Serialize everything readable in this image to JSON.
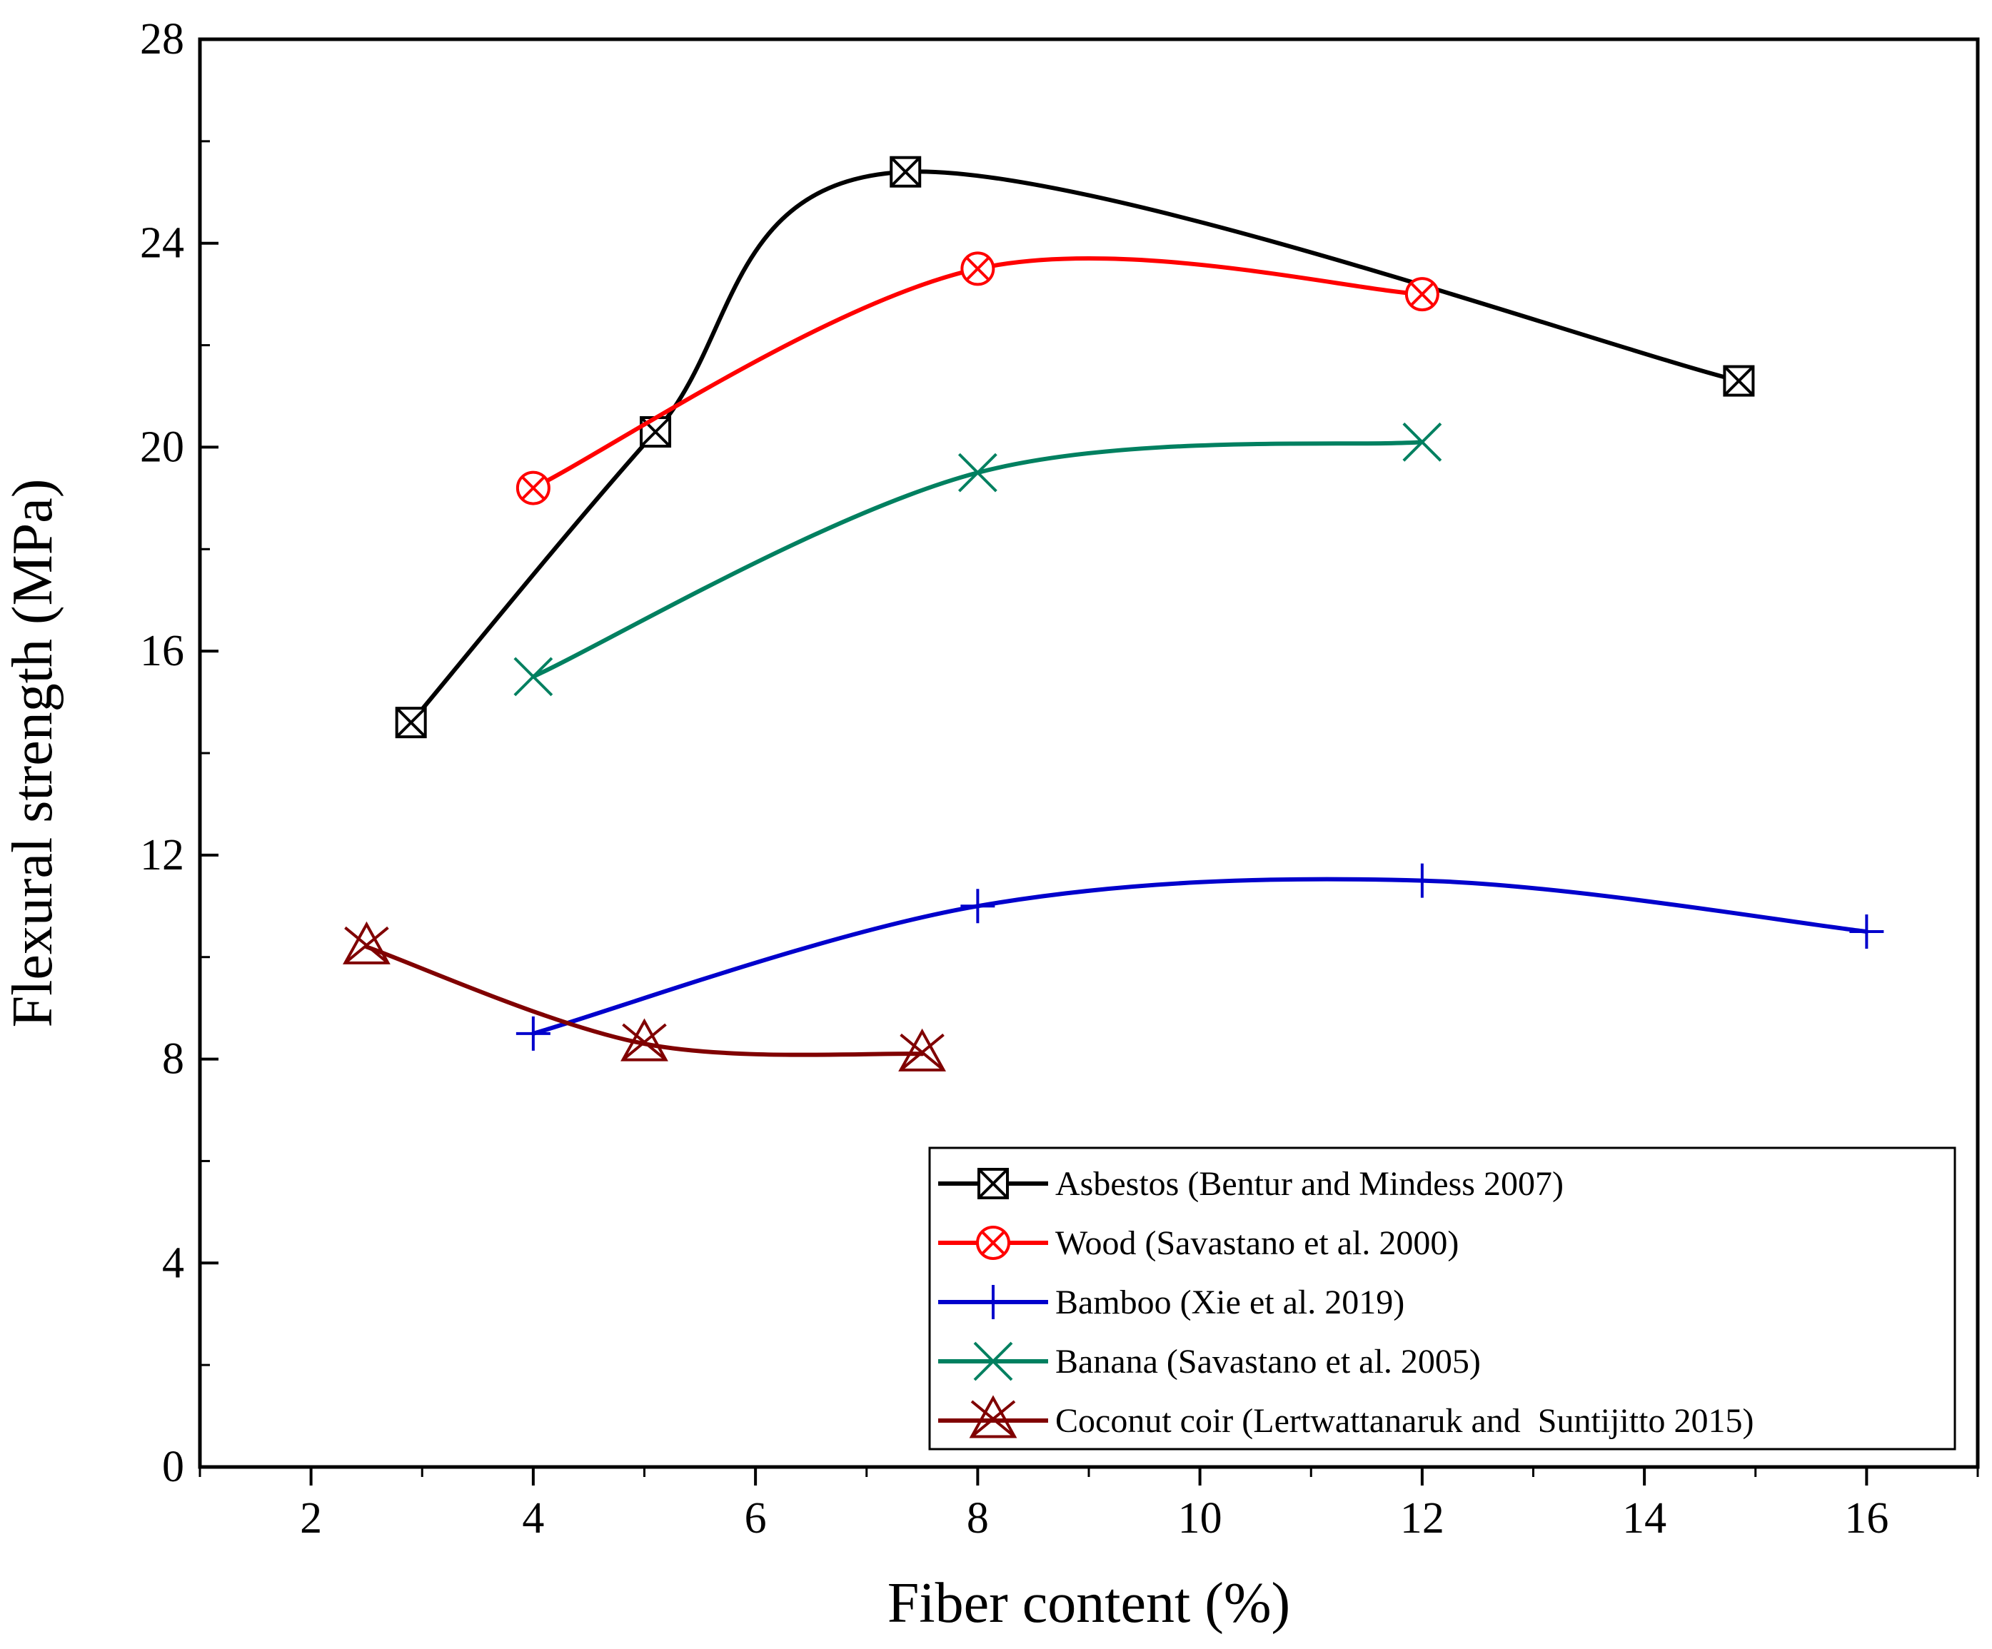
{
  "chart_data": {
    "type": "line",
    "xlabel": "Fiber content (%)",
    "ylabel": "Flexural strength (MPa)",
    "xlim": [
      1,
      17
    ],
    "ylim": [
      0,
      28
    ],
    "xticks": [
      2,
      4,
      6,
      8,
      10,
      12,
      14,
      16
    ],
    "yticks": [
      0,
      4,
      8,
      12,
      16,
      20,
      24,
      28
    ],
    "grid": false,
    "legend_position": "bottom-right",
    "series": [
      {
        "name": "Asbestos (Bentur and Mindess 2007)",
        "color": "#000000",
        "marker": "square-x",
        "x": [
          2.9,
          5.1,
          7.35,
          14.85
        ],
        "y": [
          14.6,
          20.3,
          25.4,
          21.3
        ]
      },
      {
        "name": "Wood (Savastano et al. 2000)",
        "color": "#ff0000",
        "marker": "circle-x",
        "x": [
          4,
          8,
          12
        ],
        "y": [
          19.2,
          23.5,
          23.0
        ]
      },
      {
        "name": "Bamboo (Xie et al. 2019)",
        "color": "#0000cc",
        "marker": "plus",
        "x": [
          4,
          8,
          12,
          16
        ],
        "y": [
          8.5,
          11.0,
          11.5,
          10.5
        ]
      },
      {
        "name": "Banana (Savastano et al. 2005)",
        "color": "#008060",
        "marker": "x",
        "x": [
          4,
          8,
          12
        ],
        "y": [
          15.5,
          19.5,
          20.1
        ]
      },
      {
        "name": "Coconut coir (Lertwattanaruk and  Suntijitto 2015)",
        "color": "#800000",
        "marker": "triangle-x",
        "x": [
          2.5,
          5,
          7.5
        ],
        "y": [
          10.2,
          8.3,
          8.1
        ]
      }
    ]
  }
}
